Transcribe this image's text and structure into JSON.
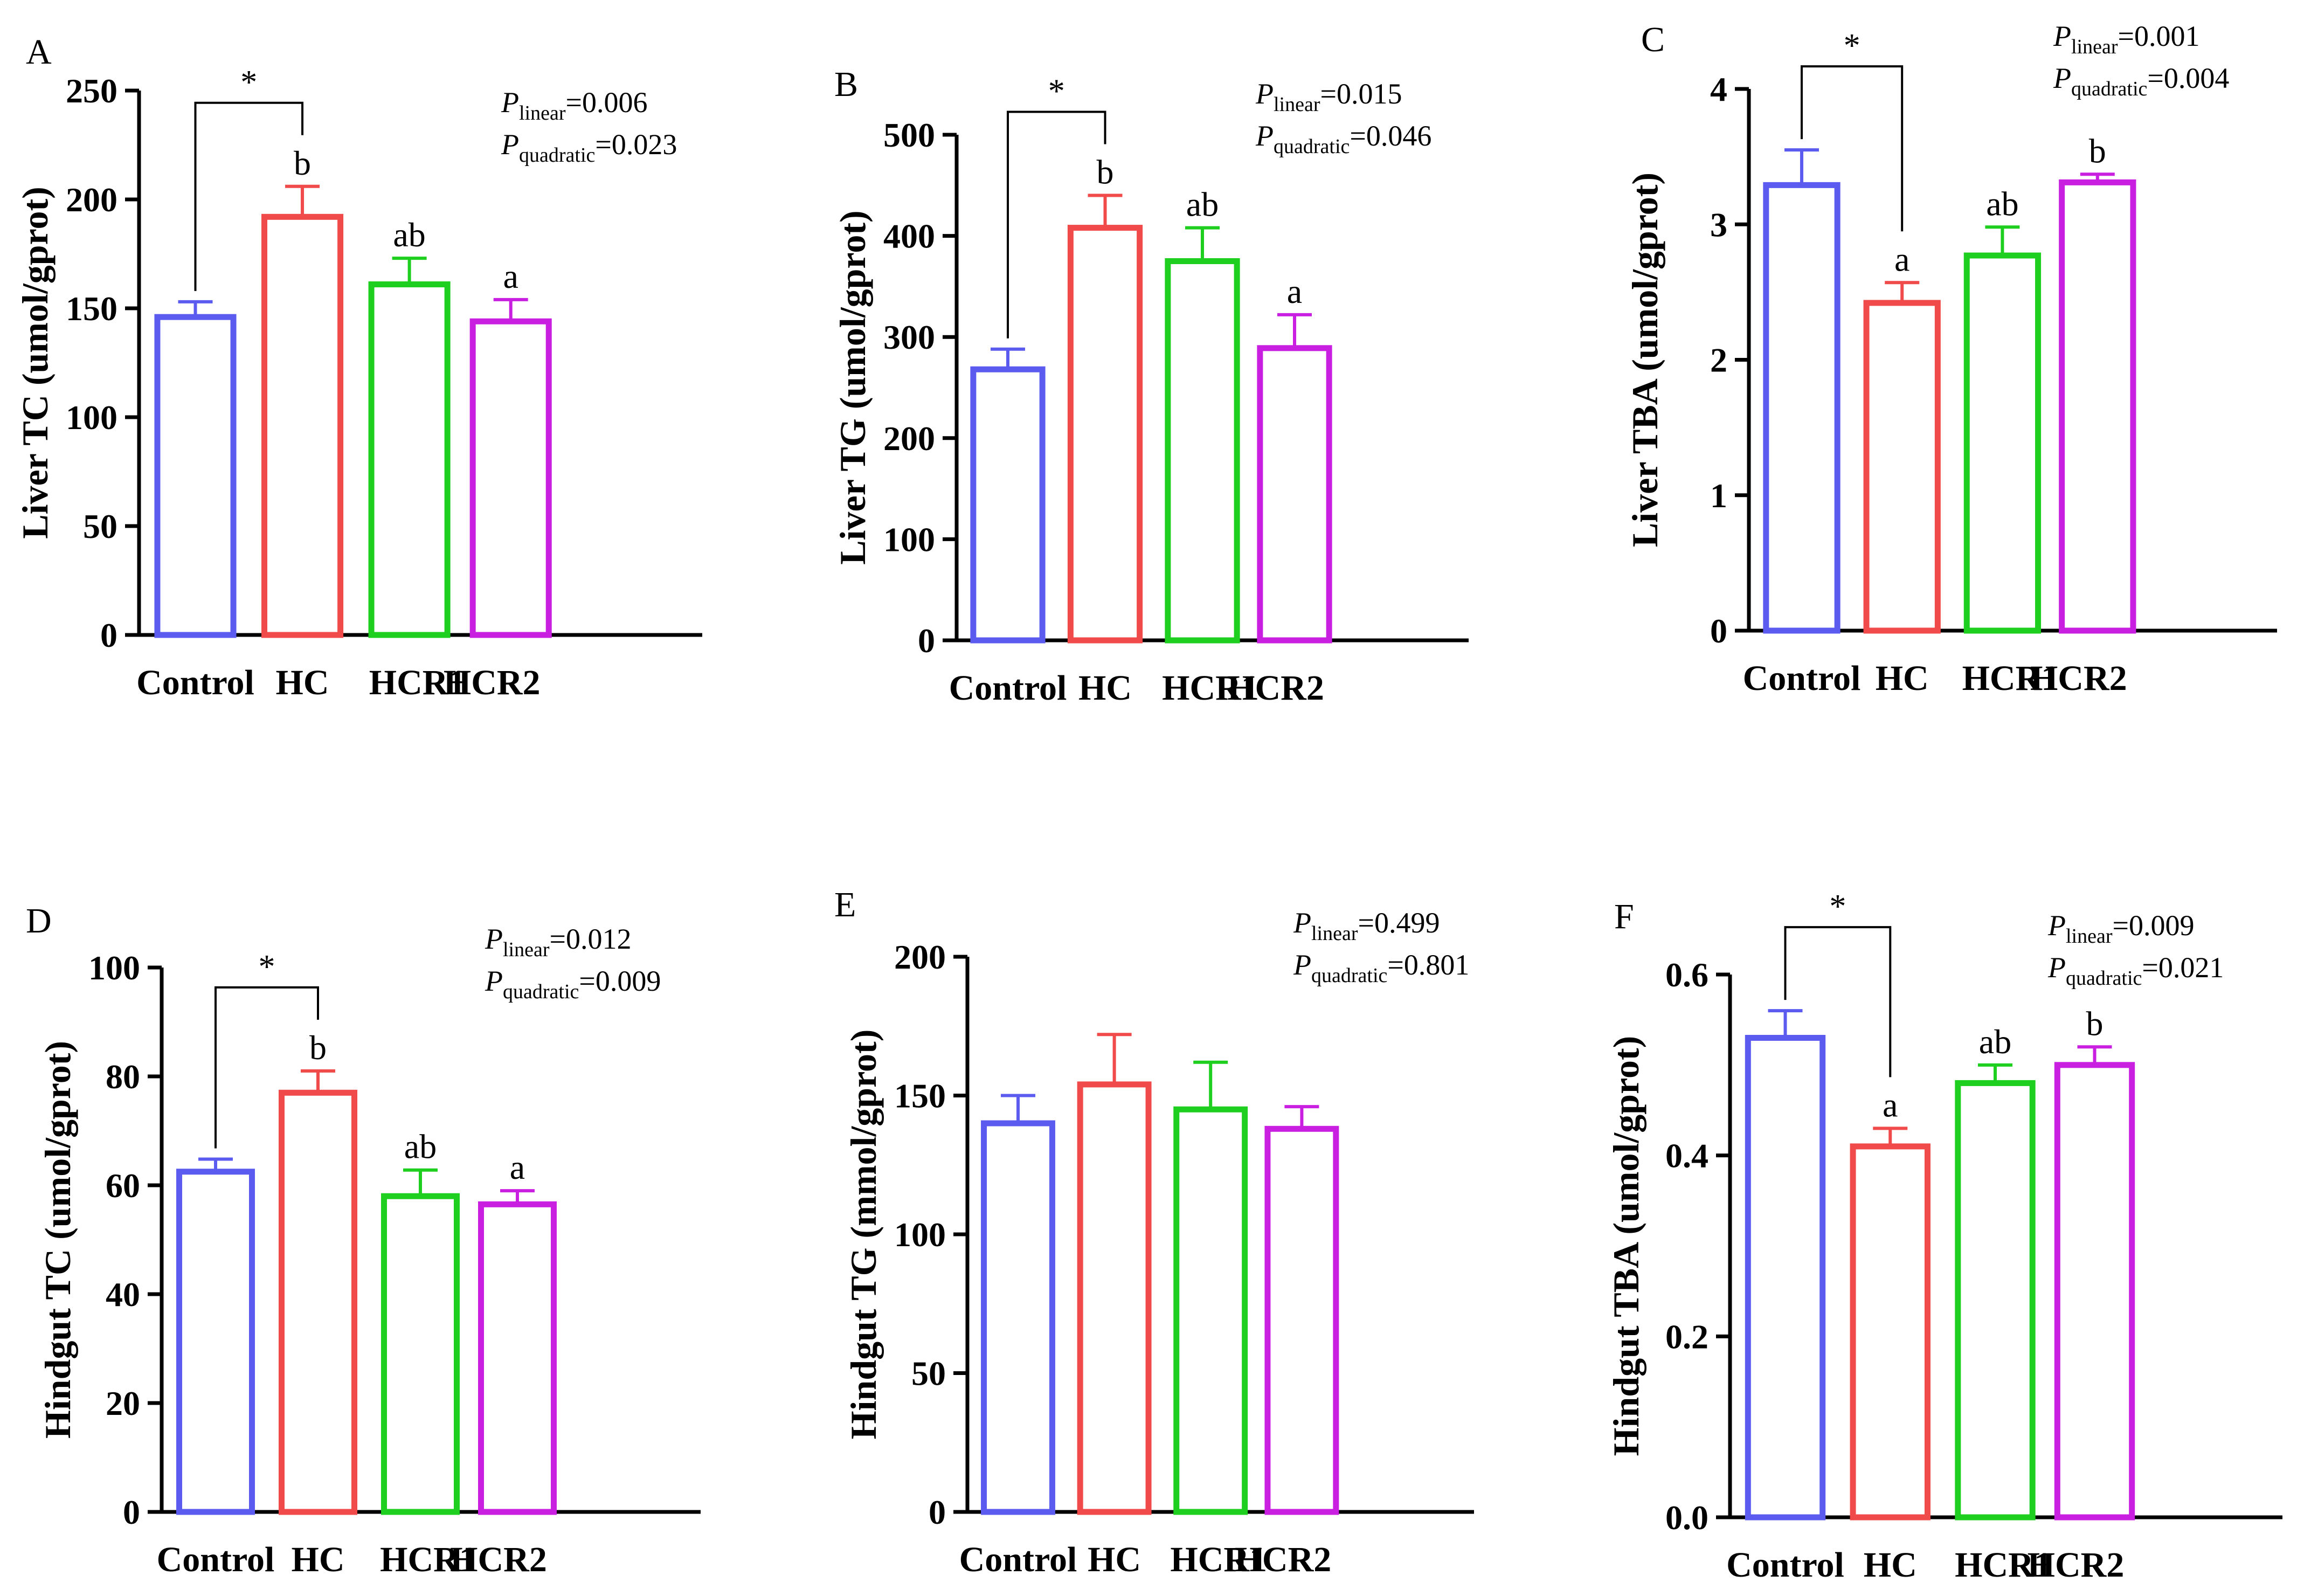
{
  "colors": {
    "Control": "#5b5bf0",
    "HC": "#f04a4a",
    "HCR1": "#1fcf1f",
    "HCR2": "#c81fe0",
    "axis": "#000000"
  },
  "chart_data": [
    {
      "type": "bar",
      "panel": "A",
      "ylabel": "Liver TC (umol/gprot)",
      "categories": [
        "Control",
        "HC",
        "HCR1",
        "HCR2"
      ],
      "values": [
        146,
        192,
        161,
        144
      ],
      "errors": [
        7,
        14,
        12,
        10
      ],
      "sig_letters": [
        "",
        "b",
        "ab",
        "a"
      ],
      "ylim": [
        0,
        250
      ],
      "yticks": [
        0,
        50,
        100,
        150,
        200,
        250
      ],
      "ytick_labels": [
        "0",
        "50",
        "100",
        "150",
        "200",
        "250"
      ],
      "bracket": {
        "from": 0,
        "to": 1,
        "label": "*"
      },
      "p_linear_label": "P",
      "p_linear_sub": "linear",
      "p_linear_value": "=0.006",
      "p_quad_label": "P",
      "p_quad_sub": "quadratic",
      "p_quad_value": "=0.023"
    },
    {
      "type": "bar",
      "panel": "B",
      "ylabel": "Liver TG (umol/gprot)",
      "categories": [
        "Control",
        "HC",
        "HCR1",
        "HCR2"
      ],
      "values": [
        268,
        408,
        375,
        289
      ],
      "errors": [
        20,
        32,
        33,
        33
      ],
      "sig_letters": [
        "",
        "b",
        "ab",
        "a"
      ],
      "ylim": [
        0,
        500
      ],
      "yticks": [
        0,
        100,
        200,
        300,
        400,
        500
      ],
      "ytick_labels": [
        "0",
        "100",
        "200",
        "300",
        "400",
        "500"
      ],
      "bracket": {
        "from": 0,
        "to": 1,
        "label": "*"
      },
      "p_linear_label": "P",
      "p_linear_sub": "linear",
      "p_linear_value": "=0.015",
      "p_quad_label": "P",
      "p_quad_sub": "quadratic",
      "p_quad_value": "=0.046"
    },
    {
      "type": "bar",
      "panel": "C",
      "ylabel": "Liver TBA (umol/gprot)",
      "categories": [
        "Control",
        "HC",
        "HCR1",
        "HCR2"
      ],
      "values": [
        3.29,
        2.42,
        2.77,
        3.31
      ],
      "errors": [
        0.26,
        0.15,
        0.21,
        0.06
      ],
      "sig_letters": [
        "",
        "a",
        "ab",
        "b"
      ],
      "ylim": [
        0,
        4
      ],
      "yticks": [
        0,
        1,
        2,
        3,
        4
      ],
      "ytick_labels": [
        "0",
        "1",
        "2",
        "3",
        "4"
      ],
      "bracket": {
        "from": 0,
        "to": 1,
        "label": "*"
      },
      "p_linear_label": "P",
      "p_linear_sub": "linear",
      "p_linear_value": "=0.001",
      "p_quad_label": "P",
      "p_quad_sub": "quadratic",
      "p_quad_value": "=0.004"
    },
    {
      "type": "bar",
      "panel": "D",
      "ylabel": "Hindgut TC (umol/gprot)",
      "categories": [
        "Control",
        "HC",
        "HCR1",
        "HCR2"
      ],
      "values": [
        62.5,
        77,
        58,
        56.5
      ],
      "errors": [
        2.3,
        4,
        4.8,
        2.5
      ],
      "sig_letters": [
        "",
        "b",
        "ab",
        "a"
      ],
      "ylim": [
        0,
        100
      ],
      "yticks": [
        0,
        20,
        40,
        60,
        80,
        100
      ],
      "ytick_labels": [
        "0",
        "20",
        "40",
        "60",
        "80",
        "100"
      ],
      "bracket": {
        "from": 0,
        "to": 1,
        "label": "*"
      },
      "p_linear_label": "P",
      "p_linear_sub": "linear",
      "p_linear_value": "=0.012",
      "p_quad_label": "P",
      "p_quad_sub": "quadratic",
      "p_quad_value": "=0.009"
    },
    {
      "type": "bar",
      "panel": "E",
      "ylabel": "Hindgut TG (mmol/gprot)",
      "categories": [
        "Control",
        "HC",
        "HCR1",
        "HCR2"
      ],
      "values": [
        140,
        154,
        145,
        138
      ],
      "errors": [
        10,
        18,
        17,
        8
      ],
      "sig_letters": [
        "",
        "",
        "",
        ""
      ],
      "ylim": [
        0,
        200
      ],
      "yticks": [
        0,
        50,
        100,
        150,
        200
      ],
      "ytick_labels": [
        "0",
        "50",
        "100",
        "150",
        "200"
      ],
      "bracket": null,
      "p_linear_label": "P",
      "p_linear_sub": "linear",
      "p_linear_value": "=0.499",
      "p_quad_label": "P",
      "p_quad_sub": "quadratic",
      "p_quad_value": "=0.801"
    },
    {
      "type": "bar",
      "panel": "F",
      "ylabel": "Hindgut TBA (umol/gprot)",
      "categories": [
        "Control",
        "HC",
        "HCR1",
        "HCR2"
      ],
      "values": [
        0.53,
        0.41,
        0.48,
        0.5
      ],
      "errors": [
        0.03,
        0.02,
        0.02,
        0.02
      ],
      "sig_letters": [
        "",
        "a",
        "ab",
        "b"
      ],
      "ylim": [
        0,
        0.6
      ],
      "yticks": [
        0,
        0.2,
        0.4,
        0.6
      ],
      "ytick_labels": [
        "0.0",
        "0.2",
        "0.4",
        "0.6"
      ],
      "bracket": {
        "from": 0,
        "to": 1,
        "label": "*"
      },
      "p_linear_label": "P",
      "p_linear_sub": "linear",
      "p_linear_value": "=0.009",
      "p_quad_label": "P",
      "p_quad_sub": "quadratic",
      "p_quad_value": "=0.021"
    }
  ]
}
